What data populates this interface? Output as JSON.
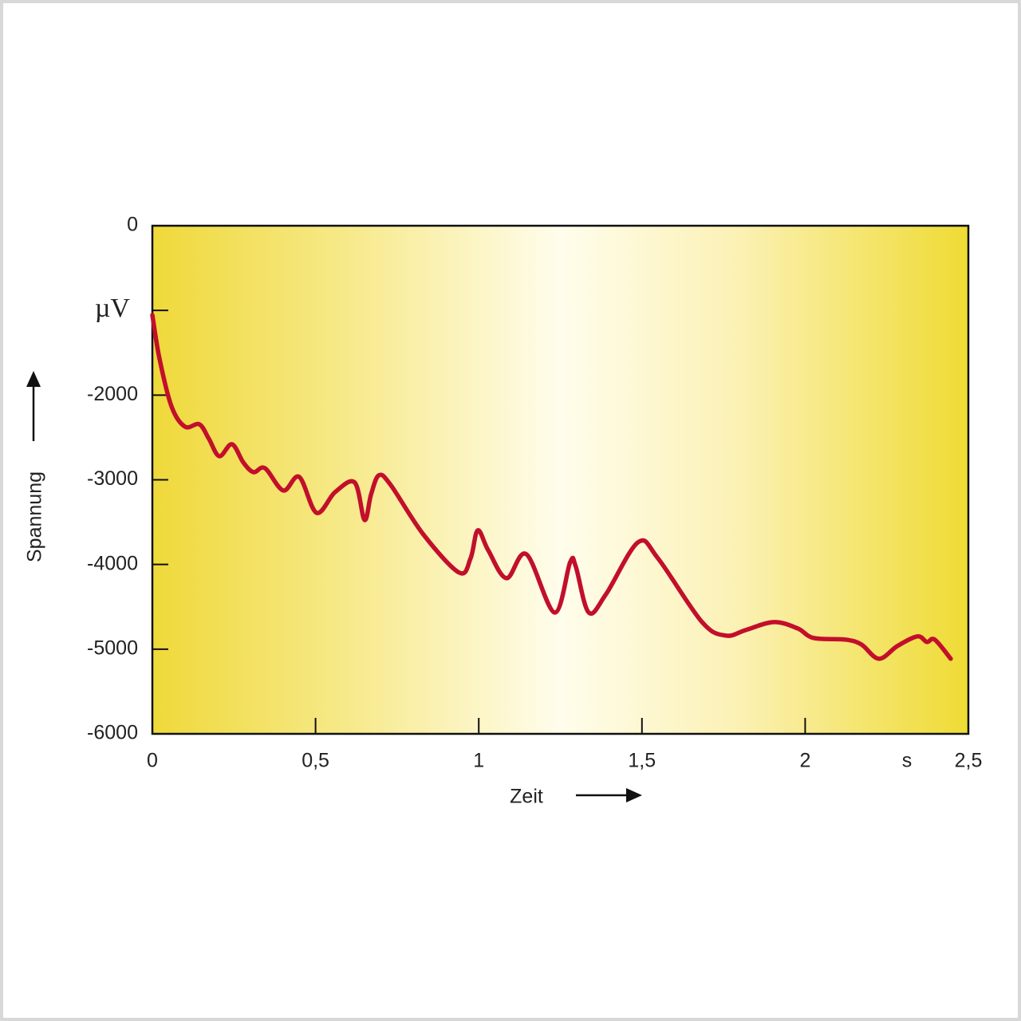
{
  "chart_data": {
    "type": "line",
    "xlabel": "Zeit",
    "ylabel": "Spannung",
    "xunit": "s",
    "x": [
      0,
      0.022,
      0.059,
      0.1,
      0.144,
      0.173,
      0.205,
      0.244,
      0.279,
      0.31,
      0.345,
      0.401,
      0.45,
      0.503,
      0.56,
      0.62,
      0.65,
      0.67,
      0.694,
      0.73,
      0.83,
      0.94,
      0.975,
      0.997,
      1.029,
      1.085,
      1.146,
      1.232,
      1.28,
      1.297,
      1.337,
      1.39,
      1.488,
      1.549,
      1.684,
      1.757,
      1.818,
      1.904,
      1.977,
      2.026,
      2.123,
      2.172,
      2.226,
      2.283,
      2.344,
      2.373,
      2.397,
      2.446
    ],
    "values": [
      -1055,
      -1572,
      -2137,
      -2373,
      -2345,
      -2514,
      -2721,
      -2580,
      -2797,
      -2910,
      -2863,
      -3126,
      -2966,
      -3390,
      -3145,
      -3032,
      -3475,
      -3173,
      -2947,
      -3060,
      -3644,
      -4096,
      -3927,
      -3597,
      -3832,
      -4162,
      -3879,
      -4567,
      -3974,
      -4021,
      -4567,
      -4350,
      -3738,
      -3927,
      -4680,
      -4840,
      -4774,
      -4680,
      -4755,
      -4868,
      -4887,
      -4944,
      -5113,
      -4962,
      -4849,
      -4915,
      -4887,
      -5113
    ],
    "color": "#c20f2b",
    "xlim": [
      0,
      2.5
    ],
    "xticks": [
      0,
      {
        "value": 0.5,
        "label": "0,5"
      },
      1,
      {
        "value": 1.5,
        "label": "1,5"
      },
      2,
      {
        "value": 2.5,
        "label": "2,5"
      }
    ],
    "ylim": [
      -6000,
      0
    ],
    "yticks": [
      0,
      {
        "value": -1000,
        "label": "µV"
      },
      -2000,
      -3000,
      -4000,
      -5000,
      -6000
    ],
    "grid": false
  }
}
